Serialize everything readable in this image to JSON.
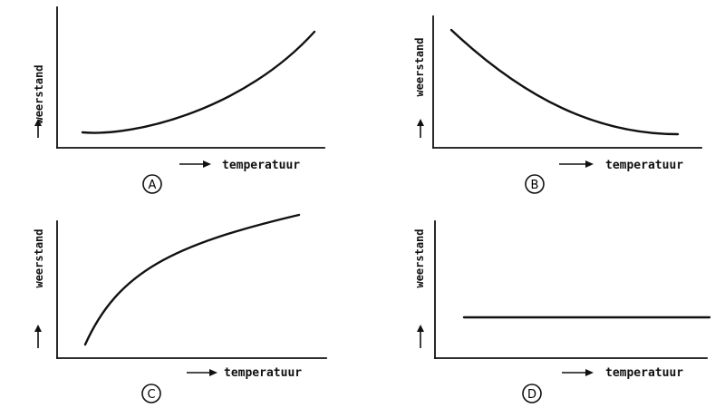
{
  "panels": [
    {
      "letter": "A",
      "ylabel": "weerstand",
      "xlabel": "temperatuur",
      "trend": "increasing, convex"
    },
    {
      "letter": "B",
      "ylabel": "weerstand",
      "xlabel": "temperatuur",
      "trend": "decreasing, convex"
    },
    {
      "letter": "C",
      "ylabel": "weerstand",
      "xlabel": "temperatuur",
      "trend": "increasing, concave"
    },
    {
      "letter": "D",
      "ylabel": "weerstand",
      "xlabel": "temperatuur",
      "trend": "constant"
    }
  ],
  "colors": {
    "ink": "#111111",
    "background": "#ffffff"
  }
}
